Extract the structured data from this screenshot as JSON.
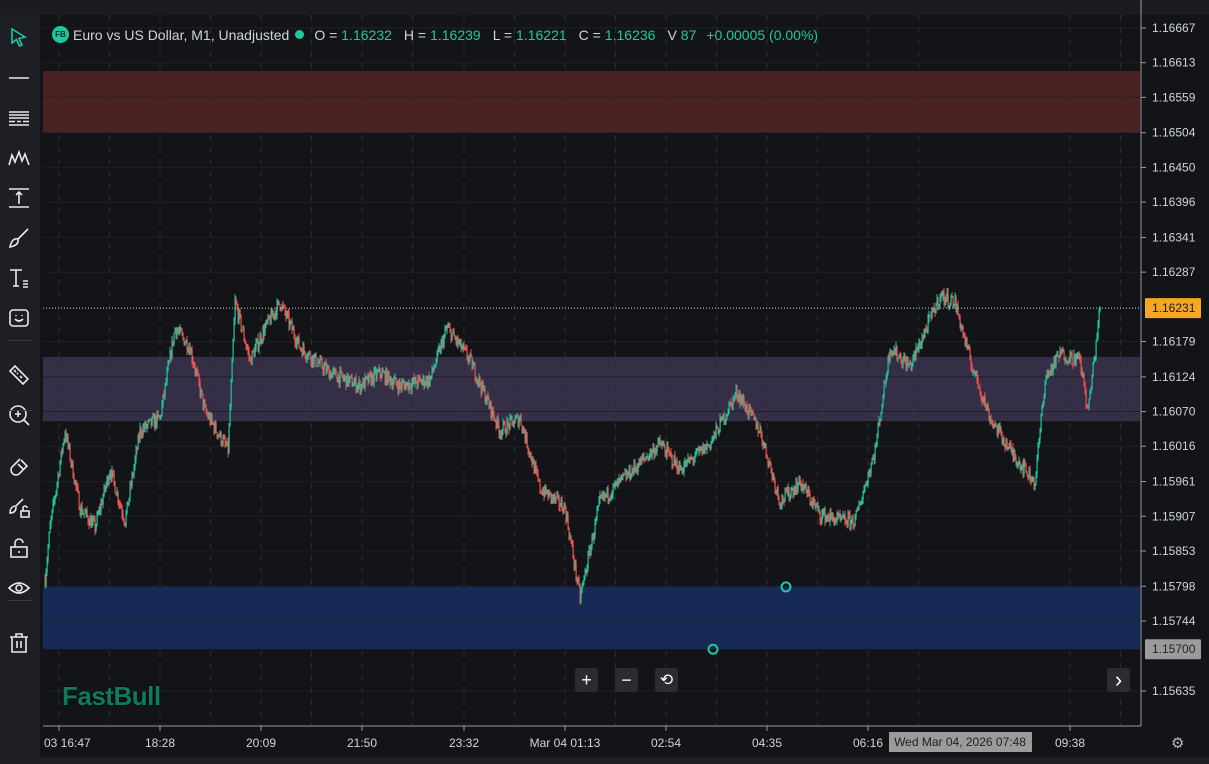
{
  "legend": {
    "logo": "FB",
    "title": "Euro vs US Dollar, M1, Unadjusted",
    "o_label": "O =",
    "o": "1.16232",
    "h_label": "H =",
    "h": "1.16239",
    "l_label": "L =",
    "l": "1.16221",
    "c_label": "C =",
    "c": "1.16236",
    "v_label": "V",
    "v": "87",
    "change": "+0.00005 (0.00%)"
  },
  "toolbar": [
    {
      "icon": "cursor-arrow-icon"
    },
    {
      "icon": "horizontal-line-icon"
    },
    {
      "icon": "fibonacci-lines-icon"
    },
    {
      "icon": "pattern-icon"
    },
    {
      "icon": "measure-arrow-icon"
    },
    {
      "icon": "brush-icon"
    },
    {
      "icon": "text-icon"
    },
    {
      "icon": "emoji-icon"
    },
    {
      "icon": "ruler-icon"
    },
    {
      "icon": "zoom-in-icon"
    },
    {
      "icon": "magnet-icon"
    },
    {
      "icon": "lock-drawing-icon"
    },
    {
      "icon": "unlock-icon"
    },
    {
      "icon": "eye-icon"
    },
    {
      "icon": "trash-icon"
    }
  ],
  "controls": {
    "zoom_in": "+",
    "zoom_out": "−",
    "reset": "⟲",
    "scroll_right": "›",
    "settings": "⚙"
  },
  "brand": "FastBull",
  "colors": {
    "up": "#26a69a",
    "up_bright": "#1fc7a0",
    "down": "#ef5350",
    "accent": "#1fc7a0",
    "price_tag": "#f5a623",
    "zone_resistance": "#4a2222",
    "zone_middle": "#352e47",
    "zone_support": "#172a57"
  },
  "chart_data": {
    "type": "candlestick",
    "symbol": "Euro vs US Dollar, M1, Unadjusted",
    "y_ticks": [
      "1.16667",
      "1.16613",
      "1.16559",
      "1.16504",
      "1.16450",
      "1.16396",
      "1.16341",
      "1.16287",
      "1.16179",
      "1.16124",
      "1.16070",
      "1.16016",
      "1.15961",
      "1.15907",
      "1.15853",
      "1.15798",
      "1.15744",
      "1.15635"
    ],
    "ylim": [
      1.1561,
      1.1669
    ],
    "x_ticks": [
      "03 16:47",
      "18:28",
      "20:09",
      "21:50",
      "23:32",
      "Mar 04 01:13",
      "02:54",
      "04:35",
      "06:16",
      "09:38"
    ],
    "x_tick_times": [
      "2026-03-03 16:47",
      "2026-03-03 18:28",
      "2026-03-03 20:09",
      "2026-03-03 21:50",
      "2026-03-03 23:32",
      "2026-03-04 01:13",
      "2026-03-04 02:54",
      "2026-03-04 04:35",
      "2026-03-04 06:16",
      "2026-03-04 09:38"
    ],
    "current_price": "1.16231",
    "crosshair_price": "1.15700",
    "crosshair_time": "Wed Mar 04, 2026 07:48",
    "zones": [
      {
        "name": "resistance",
        "from": 1.16504,
        "to": 1.166
      },
      {
        "name": "middle",
        "from": 1.16055,
        "to": 1.16155
      },
      {
        "name": "support",
        "from": 1.157,
        "to": 1.15797
      }
    ],
    "markers": [
      {
        "time": "2026-03-04 04:54",
        "price": 1.15797
      },
      {
        "time": "2026-03-04 03:41",
        "price": 1.157
      }
    ],
    "price_path": [
      [
        "2026-03-03 16:33",
        1.1581
      ],
      [
        "2026-03-03 16:38",
        1.1589
      ],
      [
        "2026-03-03 16:53",
        1.1604
      ],
      [
        "2026-03-03 17:08",
        1.1592
      ],
      [
        "2026-03-03 17:23",
        1.1589
      ],
      [
        "2026-03-03 17:38",
        1.1598
      ],
      [
        "2026-03-03 17:53",
        1.159
      ],
      [
        "2026-03-03 18:08",
        1.1604
      ],
      [
        "2026-03-03 18:28",
        1.1606
      ],
      [
        "2026-03-03 18:43",
        1.162
      ],
      [
        "2026-03-03 18:58",
        1.1617
      ],
      [
        "2026-03-03 19:13",
        1.1607
      ],
      [
        "2026-03-03 19:36",
        1.1601
      ],
      [
        "2026-03-03 19:43",
        1.1624
      ],
      [
        "2026-03-03 19:58",
        1.1615
      ],
      [
        "2026-03-03 20:13",
        1.162
      ],
      [
        "2026-03-03 20:28",
        1.1624
      ],
      [
        "2026-03-03 20:48",
        1.1617
      ],
      [
        "2026-03-03 21:18",
        1.1613
      ],
      [
        "2026-03-03 21:48",
        1.1611
      ],
      [
        "2026-03-03 22:08",
        1.1613
      ],
      [
        "2026-03-03 22:28",
        1.1611
      ],
      [
        "2026-03-03 22:58",
        1.1612
      ],
      [
        "2026-03-03 23:15",
        1.162
      ],
      [
        "2026-03-03 23:38",
        1.1615
      ],
      [
        "2026-03-04 00:08",
        1.1604
      ],
      [
        "2026-03-04 00:28",
        1.1606
      ],
      [
        "2026-03-04 00:48",
        1.1595
      ],
      [
        "2026-03-04 01:13",
        1.1592
      ],
      [
        "2026-03-04 01:28",
        1.1578
      ],
      [
        "2026-03-04 01:48",
        1.1593
      ],
      [
        "2026-03-04 02:28",
        1.1599
      ],
      [
        "2026-03-04 02:48",
        1.1602
      ],
      [
        "2026-03-04 03:08",
        1.1598
      ],
      [
        "2026-03-04 03:38",
        1.1602
      ],
      [
        "2026-03-04 04:05",
        1.161
      ],
      [
        "2026-03-04 04:28",
        1.1604
      ],
      [
        "2026-03-04 04:48",
        1.1593
      ],
      [
        "2026-03-04 05:08",
        1.1596
      ],
      [
        "2026-03-04 05:28",
        1.1591
      ],
      [
        "2026-03-04 05:48",
        1.159
      ],
      [
        "2026-03-04 06:03",
        1.159
      ],
      [
        "2026-03-04 06:23",
        1.1601
      ],
      [
        "2026-03-04 06:38",
        1.1617
      ],
      [
        "2026-03-04 06:58",
        1.1614
      ],
      [
        "2026-03-04 07:28",
        1.1625
      ],
      [
        "2026-03-04 07:43",
        1.1624
      ],
      [
        "2026-03-04 07:58",
        1.1615
      ],
      [
        "2026-03-04 08:18",
        1.1606
      ],
      [
        "2026-03-04 08:38",
        1.1601
      ],
      [
        "2026-03-04 09:03",
        1.1596
      ],
      [
        "2026-03-04 09:13",
        1.1612
      ],
      [
        "2026-03-04 09:28",
        1.1616
      ],
      [
        "2026-03-04 09:48",
        1.1615
      ],
      [
        "2026-03-04 09:56",
        1.1607
      ],
      [
        "2026-03-04 10:08",
        1.16231
      ]
    ]
  }
}
